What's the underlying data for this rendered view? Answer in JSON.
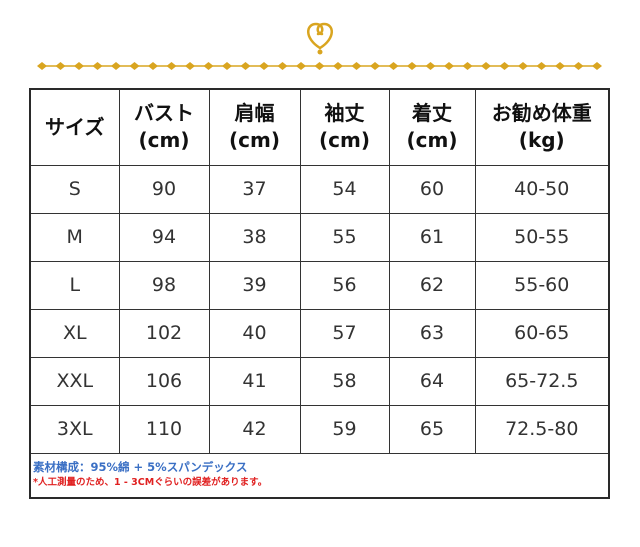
{
  "colors": {
    "ornament_gold": "#d9a520",
    "border": "#2a2a2a",
    "material_note": "#3a6fc4",
    "warning_note": "#e02020"
  },
  "table": {
    "headers": [
      {
        "label": "サイズ",
        "unit": ""
      },
      {
        "label": "バスト",
        "unit": "(cm)"
      },
      {
        "label": "肩幅",
        "unit": "(cm)"
      },
      {
        "label": "袖丈",
        "unit": "(cm)"
      },
      {
        "label": "着丈",
        "unit": "(cm)"
      },
      {
        "label": "お勧め体重",
        "unit": "(kg)"
      }
    ],
    "rows": [
      [
        "S",
        "90",
        "37",
        "54",
        "60",
        "40-50"
      ],
      [
        "M",
        "94",
        "38",
        "55",
        "61",
        "50-55"
      ],
      [
        "L",
        "98",
        "39",
        "56",
        "62",
        "55-60"
      ],
      [
        "XL",
        "102",
        "40",
        "57",
        "63",
        "60-65"
      ],
      [
        "XXL",
        "106",
        "41",
        "58",
        "64",
        "65-72.5"
      ],
      [
        "3XL",
        "110",
        "42",
        "59",
        "65",
        "72.5-80"
      ]
    ]
  },
  "notes": {
    "material": "素材構成：95%綿 + 5%スパンデックス",
    "warning": "*人工測量のため、1 - 3CMぐらいの誤差があります。"
  }
}
